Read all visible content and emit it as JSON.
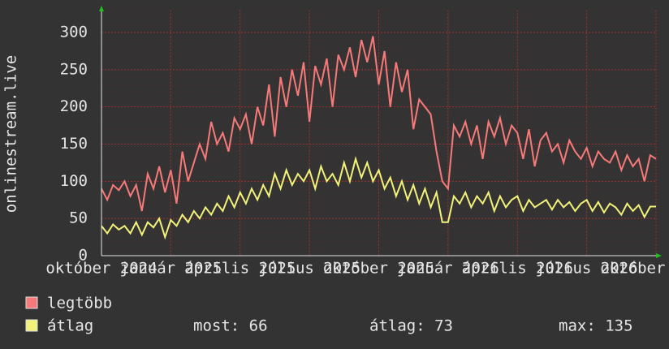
{
  "chart_data": {
    "type": "line",
    "y_label": "onlinestream.live",
    "x": [
      0,
      1,
      2,
      3,
      4,
      5,
      6,
      7,
      8,
      9,
      10,
      11,
      12,
      13,
      14,
      15,
      16,
      17,
      18,
      19,
      20,
      21,
      22,
      23,
      24,
      25,
      26,
      27,
      28,
      29,
      30,
      31,
      32,
      33,
      34,
      35,
      36,
      37,
      38,
      39,
      40,
      41,
      42,
      43,
      44,
      45,
      46,
      47,
      48,
      49,
      50,
      51,
      52,
      53,
      54,
      55,
      56,
      57,
      58,
      59,
      60,
      61,
      62,
      63,
      64,
      65,
      66,
      67,
      68,
      69,
      70,
      71,
      72,
      73,
      74,
      75,
      76,
      77,
      78,
      79,
      80,
      81,
      82,
      83,
      84,
      85,
      86,
      87,
      88,
      89,
      90,
      91,
      92,
      93,
      94,
      95,
      96
    ],
    "series": [
      {
        "name": "legtöbb",
        "color": "#f77a7a",
        "values": [
          90,
          75,
          95,
          88,
          100,
          80,
          95,
          60,
          110,
          90,
          120,
          85,
          115,
          70,
          140,
          100,
          125,
          150,
          130,
          180,
          150,
          165,
          140,
          185,
          170,
          190,
          150,
          200,
          175,
          230,
          160,
          240,
          200,
          250,
          215,
          260,
          180,
          255,
          230,
          265,
          200,
          270,
          250,
          280,
          240,
          290,
          260,
          295,
          230,
          275,
          200,
          260,
          220,
          250,
          170,
          210,
          200,
          190,
          140,
          100,
          90,
          175,
          160,
          180,
          150,
          175,
          130,
          180,
          160,
          185,
          150,
          175,
          165,
          130,
          170,
          120,
          155,
          165,
          140,
          150,
          125,
          155,
          140,
          130,
          145,
          120,
          140,
          130,
          125,
          140,
          115,
          135,
          120,
          130,
          100,
          135,
          130
        ]
      },
      {
        "name": "átlag",
        "color": "#f2f27a",
        "values": [
          40,
          30,
          42,
          35,
          40,
          30,
          45,
          28,
          45,
          38,
          50,
          25,
          48,
          40,
          55,
          45,
          60,
          50,
          65,
          55,
          70,
          60,
          80,
          65,
          85,
          70,
          90,
          75,
          95,
          80,
          110,
          90,
          115,
          95,
          110,
          100,
          115,
          90,
          120,
          100,
          110,
          95,
          125,
          100,
          130,
          105,
          125,
          100,
          115,
          90,
          105,
          80,
          100,
          75,
          95,
          70,
          90,
          65,
          85,
          45,
          45,
          80,
          70,
          85,
          65,
          80,
          70,
          85,
          60,
          80,
          65,
          75,
          80,
          60,
          75,
          65,
          70,
          75,
          62,
          75,
          65,
          72,
          60,
          70,
          75,
          60,
          72,
          58,
          70,
          65,
          55,
          70,
          60,
          68,
          52,
          66,
          66
        ]
      }
    ],
    "stats": [
      "most: 66",
      "átlag: 73",
      "max: 135"
    ],
    "xlim": [
      0,
      96
    ],
    "xticks": [
      {
        "value": 0,
        "label": "október 2024"
      },
      {
        "value": 12,
        "label": "január 2025"
      },
      {
        "value": 24,
        "label": "április 2025"
      },
      {
        "value": 36,
        "label": "július 2025"
      },
      {
        "value": 48,
        "label": "október 2025"
      },
      {
        "value": 60,
        "label": "január 2026"
      },
      {
        "value": 72,
        "label": "április 2026"
      },
      {
        "value": 84,
        "label": "július 2026"
      },
      {
        "value": 96,
        "label": "október 2026"
      }
    ],
    "ylim": [
      0,
      330
    ],
    "yticks": [
      0,
      50,
      100,
      150,
      200,
      250,
      300
    ],
    "grid": true
  }
}
